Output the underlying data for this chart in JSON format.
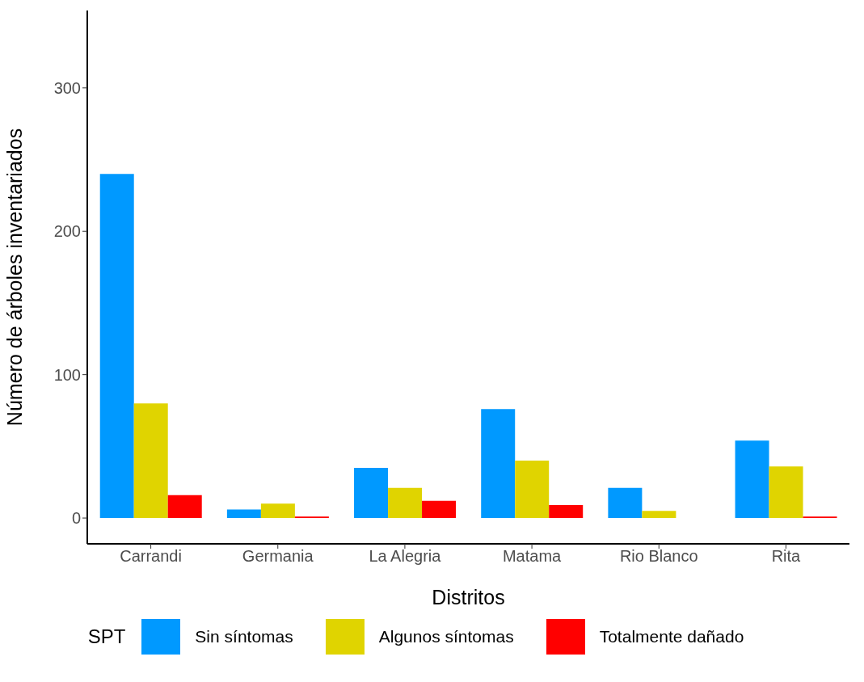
{
  "chart_data": {
    "type": "bar",
    "xlabel": "Distritos",
    "ylabel": "Número de árboles inventariados",
    "legend_title": "SPT",
    "legend": "bottom",
    "grid": false,
    "categories": [
      "Carrandi",
      "Germania",
      "La Alegria",
      "Matama",
      "Rio Blanco",
      "Rita"
    ],
    "ylim": [
      -18,
      354
    ],
    "yticks": [
      0,
      100,
      200,
      300
    ],
    "series": [
      {
        "name": "Sin síntomas",
        "color": "#0099ff",
        "values": [
          240,
          6,
          35,
          76,
          21,
          54
        ]
      },
      {
        "name": "Algunos síntomas",
        "color": "#e0d400",
        "values": [
          80,
          10,
          21,
          40,
          5,
          36
        ]
      },
      {
        "name": "Totalmente dañado",
        "color": "#ff0000",
        "values": [
          16,
          1,
          12,
          9,
          null,
          1
        ]
      }
    ]
  }
}
